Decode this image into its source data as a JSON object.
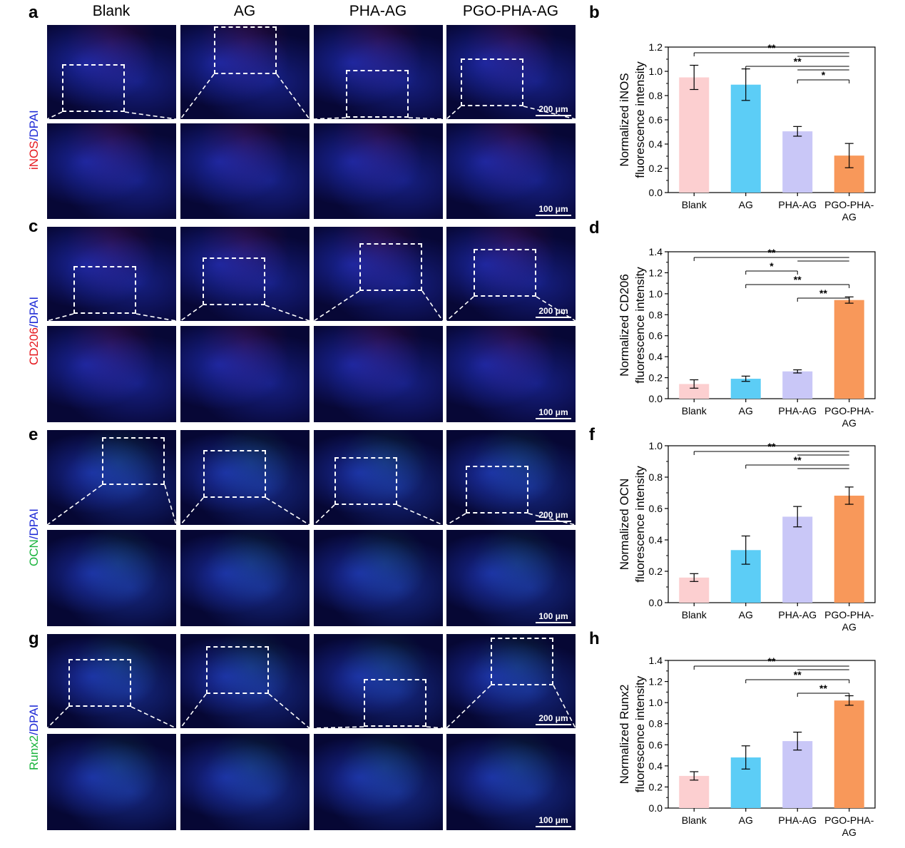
{
  "column_headers": [
    "Blank",
    "AG",
    "PHA-AG",
    "PGO-PHA-AG"
  ],
  "panel_letters": {
    "image": [
      "a",
      "c",
      "e",
      "g"
    ],
    "chart": [
      "b",
      "d",
      "f",
      "h"
    ]
  },
  "row_labels": [
    {
      "marker": "iNOS",
      "marker_color": "#e5181e",
      "stain": "DPAI",
      "sep": "/"
    },
    {
      "marker": "CD206",
      "marker_color": "#e5181e",
      "stain": "DPAI",
      "sep": "/"
    },
    {
      "marker": "OCN",
      "marker_color": "#19b33c",
      "stain": "DPAI",
      "sep": "/"
    },
    {
      "marker": "Runx2",
      "marker_color": "#19b33c",
      "stain": "DPAI",
      "sep": "/"
    }
  ],
  "scale_bars": {
    "top": "200 μm",
    "bottom": "100 μm"
  },
  "chart_data": [
    {
      "type": "bar",
      "letter": "b",
      "categories": [
        "Blank",
        "AG",
        "PHA-AG",
        "PGO-PHA-AG"
      ],
      "values": [
        0.95,
        0.89,
        0.505,
        0.305
      ],
      "errors": [
        0.1,
        0.13,
        0.04,
        0.1
      ],
      "ylabel": [
        "Normalized iNOS",
        "fluorescence intensity"
      ],
      "ylim": [
        0,
        1.2
      ],
      "yticks": [
        "0.0",
        "0.2",
        "0.4",
        "0.6",
        "0.8",
        "1.0",
        "1.2"
      ],
      "significance": [
        {
          "label": "**",
          "from": 0,
          "to": [
            2,
            3
          ]
        },
        {
          "label": "**",
          "from": 1,
          "to": [
            2,
            3
          ]
        },
        {
          "label": "*",
          "from": 2,
          "to": [
            3
          ]
        }
      ]
    },
    {
      "type": "bar",
      "letter": "d",
      "categories": [
        "Blank",
        "AG",
        "PHA-AG",
        "PGO-PHA-AG"
      ],
      "values": [
        0.14,
        0.19,
        0.26,
        0.94
      ],
      "errors": [
        0.04,
        0.025,
        0.015,
        0.03
      ],
      "ylabel": [
        "Normalized CD206",
        "fluorescence intensity"
      ],
      "ylim": [
        0,
        1.4
      ],
      "yticks": [
        "0.0",
        "0.2",
        "0.4",
        "0.6",
        "0.8",
        "1.0",
        "1.2",
        "1.4"
      ],
      "significance": [
        {
          "label": "**",
          "from": 0,
          "to": [
            2,
            3
          ]
        },
        {
          "label": "*",
          "from": 1,
          "to": [
            2
          ]
        },
        {
          "label": "**",
          "from": 1,
          "to": [
            3
          ]
        },
        {
          "label": "**",
          "from": 2,
          "to": [
            3
          ]
        }
      ]
    },
    {
      "type": "bar",
      "letter": "f",
      "categories": [
        "Blank",
        "AG",
        "PHA-AG",
        "PGO-PHA-AG"
      ],
      "values": [
        0.16,
        0.335,
        0.548,
        0.682
      ],
      "errors": [
        0.025,
        0.09,
        0.065,
        0.055
      ],
      "ylabel": [
        "Normalized OCN",
        "fluorescence intensity"
      ],
      "ylim": [
        0,
        1.0
      ],
      "yticks": [
        "0.0",
        "0.2",
        "0.4",
        "0.6",
        "0.8",
        "1.0"
      ],
      "significance": [
        {
          "label": "**",
          "from": 0,
          "to": [
            2,
            3
          ]
        },
        {
          "label": "**",
          "from": 1,
          "to": [
            2,
            3
          ]
        }
      ]
    },
    {
      "type": "bar",
      "letter": "h",
      "categories": [
        "Blank",
        "AG",
        "PHA-AG",
        "PGO-PHA-AG"
      ],
      "values": [
        0.305,
        0.48,
        0.635,
        1.02
      ],
      "errors": [
        0.04,
        0.11,
        0.085,
        0.045
      ],
      "ylabel": [
        "Normalized Runx2",
        "fluorescence intensity"
      ],
      "ylim": [
        0,
        1.4
      ],
      "yticks": [
        "0.0",
        "0.2",
        "0.4",
        "0.6",
        "0.8",
        "1.0",
        "1.2",
        "1.4"
      ],
      "significance": [
        {
          "label": "**",
          "from": 0,
          "to": [
            2,
            3
          ]
        },
        {
          "label": "**",
          "from": 1,
          "to": [
            3
          ]
        },
        {
          "label": "**",
          "from": 2,
          "to": [
            3
          ]
        }
      ]
    }
  ],
  "bar_colors": [
    "#fccfd0",
    "#5ccdf6",
    "#c9c7f7",
    "#f8985a"
  ],
  "category_display": [
    [
      "Blank"
    ],
    [
      "AG"
    ],
    [
      "PHA-AG"
    ],
    [
      "PGO-PHA-",
      "AG"
    ]
  ]
}
